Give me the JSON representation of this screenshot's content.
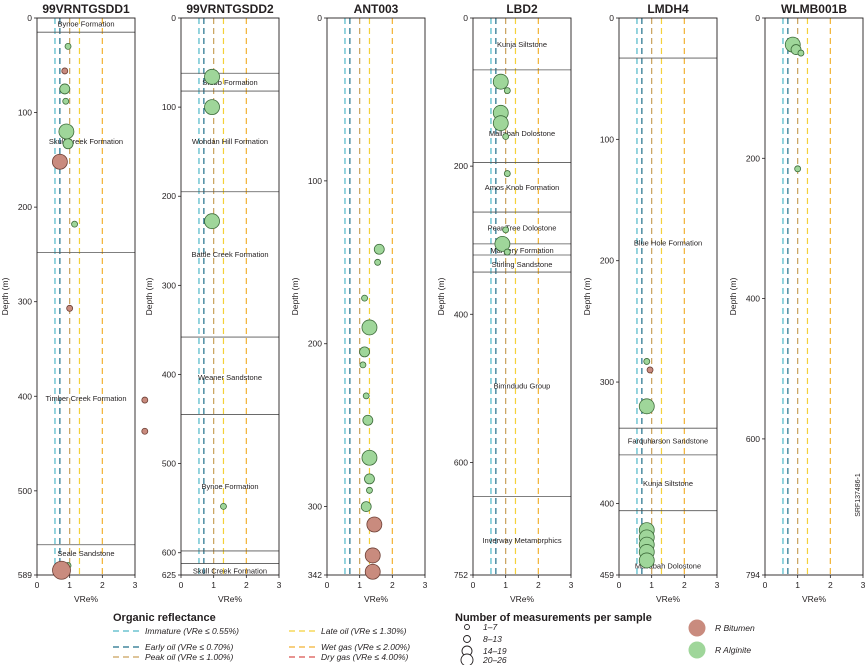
{
  "figure_code": "SRF137486-1",
  "chart_data": {
    "type": "scatter",
    "x_axis": {
      "label": "VRe%",
      "range": [
        0,
        3
      ],
      "ticks": [
        0,
        1,
        2,
        3
      ]
    },
    "y_axis": {
      "label": "Depth (m)",
      "inverted": true
    },
    "reflectance_thresholds": [
      {
        "name": "Immature (VRe ≤ 0.55%)",
        "value": 0.55,
        "color": "#4fb7c7"
      },
      {
        "name": "Early oil (VRe  ≤ 0.70%)",
        "value": 0.7,
        "color": "#1f6f8b"
      },
      {
        "name": "Peak oil (VRe  ≤ 1.00%)",
        "value": 1.0,
        "color": "#c9a15a"
      },
      {
        "name": "Late oil (VRe ≤ 1.30%)",
        "value": 1.3,
        "color": "#f4d13a"
      },
      {
        "name": "Wet gas (VRe  ≤ 2.00%)",
        "value": 2.0,
        "color": "#f2b233"
      },
      {
        "name": "Dry gas (VRe  ≤ 4.00%)",
        "value": 4.0,
        "color": "#d9534f"
      }
    ],
    "size_classes": [
      {
        "label": "1–7"
      },
      {
        "label": "8–13"
      },
      {
        "label": "14–19"
      },
      {
        "label": "20–26"
      }
    ],
    "sample_types": [
      {
        "label": "R Bitumen",
        "color": "#c98b7e"
      },
      {
        "label": "R Alginite",
        "color": "#9fd69a"
      }
    ],
    "wells": [
      {
        "name": "99VRNTGSDD1",
        "ymax": 589,
        "ytick_values": [
          100,
          200,
          300,
          400,
          500
        ],
        "ytick_labels": [
          "0",
          "100",
          "200",
          "300",
          "400",
          "500",
          "589"
        ],
        "boundaries": [
          15,
          248,
          557
        ],
        "formations": [
          {
            "name": "Bynoe Formation",
            "depth": 6
          },
          {
            "name": "Skull Creek Formation",
            "depth": 130
          },
          {
            "name": "Timber Creek Formation",
            "depth": 402
          },
          {
            "name": "Seale Sandstone",
            "depth": 566
          }
        ],
        "points": [
          {
            "x": 0.95,
            "d": 30,
            "s": 1,
            "t": "A"
          },
          {
            "x": 0.85,
            "d": 56,
            "s": 1,
            "t": "B"
          },
          {
            "x": 0.85,
            "d": 75,
            "s": 2,
            "t": "A"
          },
          {
            "x": 0.88,
            "d": 88,
            "s": 1,
            "t": "A"
          },
          {
            "x": 0.9,
            "d": 120,
            "s": 3,
            "t": "A"
          },
          {
            "x": 0.95,
            "d": 133,
            "s": 2,
            "t": "A"
          },
          {
            "x": 0.7,
            "d": 152,
            "s": 3,
            "t": "B"
          },
          {
            "x": 1.15,
            "d": 218,
            "s": 1,
            "t": "A"
          },
          {
            "x": 1.0,
            "d": 307,
            "s": 1,
            "t": "B"
          },
          {
            "x": 3.3,
            "d": 404,
            "s": 1,
            "t": "B"
          },
          {
            "x": 3.3,
            "d": 437,
            "s": 1,
            "t": "B"
          },
          {
            "x": 0.95,
            "d": 579,
            "s": 1,
            "t": "A"
          },
          {
            "x": 0.75,
            "d": 584,
            "s": 4,
            "t": "B"
          }
        ]
      },
      {
        "name": "99VRNTGSDD2",
        "ymax": 625,
        "ytick_values": [
          100,
          200,
          300,
          400,
          500,
          600
        ],
        "ytick_labels": [
          "0",
          "100",
          "200",
          "300",
          "400",
          "500",
          "600",
          "625"
        ],
        "boundaries": [
          62,
          82,
          195,
          358,
          445,
          598,
          612
        ],
        "formations": [
          {
            "name": "Stubb Formation",
            "depth": 72
          },
          {
            "name": "Wondan Hill Formation",
            "depth": 138
          },
          {
            "name": "Battle Creek Formation",
            "depth": 265
          },
          {
            "name": "Weaner Sandstone",
            "depth": 403
          },
          {
            "name": "Bynoe Formation",
            "depth": 525
          },
          {
            "name": "Skull Creek Formation",
            "depth": 620
          }
        ],
        "points": [
          {
            "x": 0.95,
            "d": 66,
            "s": 3,
            "t": "A"
          },
          {
            "x": 0.95,
            "d": 100,
            "s": 3,
            "t": "A"
          },
          {
            "x": 0.95,
            "d": 228,
            "s": 3,
            "t": "A"
          },
          {
            "x": 1.3,
            "d": 548,
            "s": 1,
            "t": "A"
          }
        ]
      },
      {
        "name": "ANT003",
        "ymax": 342,
        "ytick_values": [
          100,
          200,
          300
        ],
        "ytick_labels": [
          "0",
          "100",
          "200",
          "300",
          "342"
        ],
        "boundaries": [],
        "formations": [],
        "points": [
          {
            "x": 1.6,
            "d": 142,
            "s": 2,
            "t": "A"
          },
          {
            "x": 1.55,
            "d": 150,
            "s": 1,
            "t": "A"
          },
          {
            "x": 1.15,
            "d": 172,
            "s": 1,
            "t": "A"
          },
          {
            "x": 1.3,
            "d": 190,
            "s": 3,
            "t": "A"
          },
          {
            "x": 1.15,
            "d": 205,
            "s": 2,
            "t": "A"
          },
          {
            "x": 1.1,
            "d": 213,
            "s": 1,
            "t": "A"
          },
          {
            "x": 1.2,
            "d": 232,
            "s": 1,
            "t": "A"
          },
          {
            "x": 1.25,
            "d": 247,
            "s": 2,
            "t": "A"
          },
          {
            "x": 1.3,
            "d": 270,
            "s": 3,
            "t": "A"
          },
          {
            "x": 1.3,
            "d": 283,
            "s": 2,
            "t": "A"
          },
          {
            "x": 1.3,
            "d": 290,
            "s": 1,
            "t": "A"
          },
          {
            "x": 1.2,
            "d": 300,
            "s": 2,
            "t": "A"
          },
          {
            "x": 1.45,
            "d": 311,
            "s": 3,
            "t": "B"
          },
          {
            "x": 1.4,
            "d": 330,
            "s": 3,
            "t": "B"
          },
          {
            "x": 1.4,
            "d": 340,
            "s": 3,
            "t": "B"
          }
        ]
      },
      {
        "name": "LBD2",
        "ymax": 752,
        "ytick_values": [
          200,
          400,
          600
        ],
        "ytick_labels": [
          "0",
          "200",
          "400",
          "600",
          "752"
        ],
        "boundaries": [
          70,
          195,
          262,
          305,
          320,
          343,
          646
        ],
        "formations": [
          {
            "name": "Kunja Siltstone",
            "depth": 35
          },
          {
            "name": "Mallabah Dolostone",
            "depth": 155
          },
          {
            "name": "Amos Knob Formation",
            "depth": 228
          },
          {
            "name": "Pear Tree Dolostone",
            "depth": 283
          },
          {
            "name": "Margery Formation",
            "depth": 313
          },
          {
            "name": "Stirling Sandstone",
            "depth": 332
          },
          {
            "name": "Bimndudu Group",
            "depth": 496
          },
          {
            "name": "Inverway Metamorphics",
            "depth": 705
          }
        ],
        "points": [
          {
            "x": 0.85,
            "d": 86,
            "s": 3,
            "t": "A"
          },
          {
            "x": 1.05,
            "d": 98,
            "s": 1,
            "t": "A"
          },
          {
            "x": 0.85,
            "d": 128,
            "s": 3,
            "t": "A"
          },
          {
            "x": 0.85,
            "d": 142,
            "s": 3,
            "t": "A"
          },
          {
            "x": 1.0,
            "d": 160,
            "s": 1,
            "t": "A"
          },
          {
            "x": 1.05,
            "d": 210,
            "s": 1,
            "t": "A"
          },
          {
            "x": 1.0,
            "d": 286,
            "s": 1,
            "t": "A"
          },
          {
            "x": 0.9,
            "d": 305,
            "s": 3,
            "t": "A"
          },
          {
            "x": 1.05,
            "d": 316,
            "s": 1,
            "t": "A"
          }
        ]
      },
      {
        "name": "LMDH4",
        "ymax": 459,
        "ytick_values": [
          100,
          200,
          300,
          400
        ],
        "ytick_labels": [
          "0",
          "100",
          "200",
          "300",
          "400",
          "459"
        ],
        "boundaries": [
          33,
          338,
          360,
          406
        ],
        "formations": [
          {
            "name": "Blue Hole Formation",
            "depth": 185
          },
          {
            "name": "Farquharson Sandstone",
            "depth": 348
          },
          {
            "name": "Kunja Siltstone",
            "depth": 383
          },
          {
            "name": "Mallabah Dolostone",
            "depth": 451
          }
        ],
        "points": [
          {
            "x": 0.85,
            "d": 283,
            "s": 1,
            "t": "A"
          },
          {
            "x": 0.95,
            "d": 290,
            "s": 1,
            "t": "B"
          },
          {
            "x": 0.85,
            "d": 320,
            "s": 3,
            "t": "A"
          },
          {
            "x": 0.85,
            "d": 422,
            "s": 3,
            "t": "A"
          },
          {
            "x": 0.85,
            "d": 428,
            "s": 3,
            "t": "A"
          },
          {
            "x": 0.85,
            "d": 434,
            "s": 3,
            "t": "A"
          },
          {
            "x": 0.85,
            "d": 440,
            "s": 3,
            "t": "A"
          },
          {
            "x": 0.85,
            "d": 447,
            "s": 3,
            "t": "A"
          }
        ]
      },
      {
        "name": "WLMB001B",
        "ymax": 794,
        "ytick_values": [
          200,
          400,
          600
        ],
        "ytick_labels": [
          "0",
          "200",
          "400",
          "600",
          "794"
        ],
        "boundaries": [],
        "formations": [],
        "points": [
          {
            "x": 0.85,
            "d": 38,
            "s": 3,
            "t": "A"
          },
          {
            "x": 0.95,
            "d": 45,
            "s": 2,
            "t": "A"
          },
          {
            "x": 1.1,
            "d": 50,
            "s": 1,
            "t": "A"
          },
          {
            "x": 1.0,
            "d": 215,
            "s": 1,
            "t": "A"
          }
        ]
      }
    ]
  },
  "legend": {
    "reflectance_title": "Organic reflectance",
    "measurements_title": "Number of measurements per sample"
  }
}
